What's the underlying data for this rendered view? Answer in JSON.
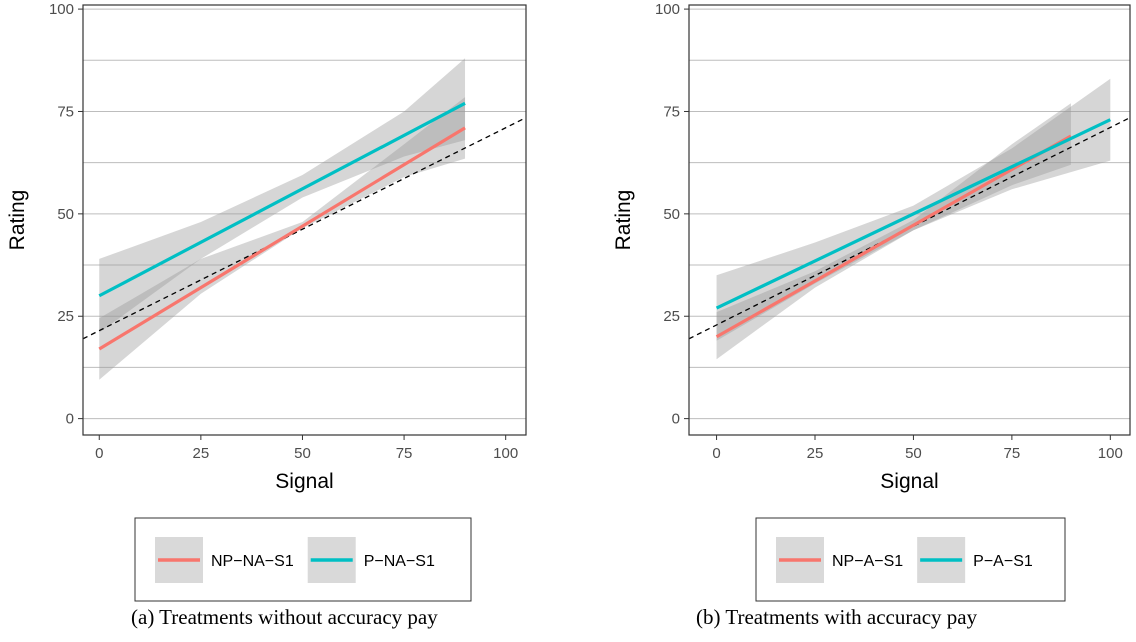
{
  "chart_data": [
    {
      "type": "line",
      "title": "",
      "xlabel": "Signal",
      "ylabel": "Rating",
      "xlim": [
        -4,
        105
      ],
      "ylim": [
        -4,
        101
      ],
      "x_ticks": [
        0,
        25,
        50,
        75,
        100
      ],
      "y_ticks": [
        0,
        25,
        50,
        75,
        100
      ],
      "x_tick_labels": [
        "0",
        "25",
        "50",
        "75",
        "100"
      ],
      "y_tick_labels": [
        "0",
        "25",
        "50",
        "75",
        "100"
      ],
      "grid": "horizontal",
      "legend_position": "bottom",
      "reference_line": {
        "style": "dashed",
        "color": "#000000",
        "x": [
          -4,
          105
        ],
        "y": [
          19.5,
          73.5
        ]
      },
      "series": [
        {
          "name": "NP−NA−S1",
          "color": "#F8766D",
          "x": [
            0,
            90
          ],
          "y": [
            17,
            71
          ],
          "ci_x": [
            0,
            25,
            50,
            75,
            90
          ],
          "ci_lower": [
            9.5,
            30.5,
            46.5,
            59,
            63.5
          ],
          "ci_upper": [
            24.5,
            39,
            48,
            67,
            78.5
          ]
        },
        {
          "name": "P−NA−S1",
          "color": "#00BFC4",
          "x": [
            0,
            90
          ],
          "y": [
            30,
            77
          ],
          "ci_x": [
            0,
            25,
            50,
            75,
            90
          ],
          "ci_lower": [
            21,
            39,
            54,
            64,
            68
          ],
          "ci_upper": [
            39,
            48,
            59.5,
            75,
            88
          ]
        }
      ],
      "caption": "(a) Treatments without accuracy pay"
    },
    {
      "type": "line",
      "title": "",
      "xlabel": "Signal",
      "ylabel": "Rating",
      "xlim": [
        -7,
        105
      ],
      "ylim": [
        -4,
        101
      ],
      "x_ticks": [
        0,
        25,
        50,
        75,
        100
      ],
      "y_ticks": [
        0,
        25,
        50,
        75,
        100
      ],
      "x_tick_labels": [
        "0",
        "25",
        "50",
        "75",
        "100"
      ],
      "y_tick_labels": [
        "0",
        "25",
        "50",
        "75",
        "100"
      ],
      "grid": "horizontal",
      "legend_position": "bottom",
      "reference_line": {
        "style": "dashed",
        "color": "#000000",
        "x": [
          -7,
          105
        ],
        "y": [
          19.5,
          73.5
        ]
      },
      "series": [
        {
          "name": "NP−A−S1",
          "color": "#F8766D",
          "x": [
            0,
            90
          ],
          "y": [
            20,
            69
          ],
          "ci_x": [
            0,
            25,
            50,
            75,
            90
          ],
          "ci_lower": [
            14.5,
            32,
            46,
            57,
            62
          ],
          "ci_upper": [
            26,
            36,
            48.5,
            67,
            77
          ]
        },
        {
          "name": "P−A−S1",
          "color": "#00BFC4",
          "x": [
            0,
            100
          ],
          "y": [
            27,
            73
          ],
          "ci_x": [
            0,
            25,
            50,
            75,
            100
          ],
          "ci_lower": [
            19,
            33,
            46,
            56,
            63
          ],
          "ci_upper": [
            35,
            43,
            52,
            66,
            83
          ]
        }
      ],
      "caption": "(b) Treatments with accuracy pay"
    }
  ]
}
